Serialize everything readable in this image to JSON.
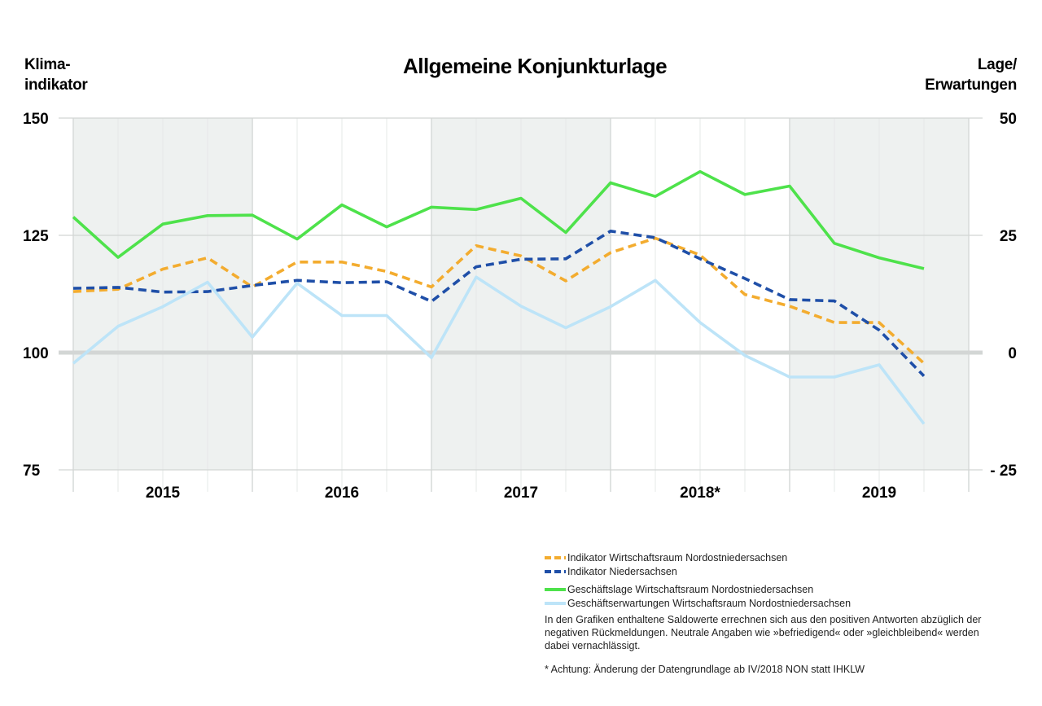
{
  "chart_data": {
    "type": "line",
    "title": "Allgemeine Konjunkturlage",
    "ylabel_left": [
      "Klima-",
      "indikator"
    ],
    "ylabel_right": [
      "Lage/",
      "Erwartungen"
    ],
    "y_left": {
      "min": 75,
      "max": 150,
      "ticks": [
        "150",
        "125",
        "100",
        "75"
      ]
    },
    "y_right": {
      "min": -25,
      "max": 50,
      "ticks": [
        "50",
        "25",
        "0",
        "- 25"
      ]
    },
    "years": [
      "2015",
      "2016",
      "2017",
      "2018*",
      "2019"
    ],
    "quarters_per_year": 4,
    "grid": true,
    "shaded_years": [
      "2015",
      "2017",
      "2019"
    ],
    "series": [
      {
        "name": "Indikator Wirtschaftsraum Nordostniedersachsen",
        "axis": "left",
        "style": "dashed",
        "color": "#f3ac2f",
        "values": [
          113.0,
          113.5,
          117.8,
          120.2,
          114.0,
          119.3,
          119.3,
          117.3,
          114.0,
          122.8,
          120.6,
          115.3,
          121.3,
          124.4,
          120.8,
          112.4,
          109.9,
          106.4,
          106.4,
          97.7
        ]
      },
      {
        "name": "Indikator Niedersachsen",
        "axis": "left",
        "style": "dashed",
        "color": "#1f4fa8",
        "values": [
          113.7,
          113.9,
          112.9,
          113.0,
          114.3,
          115.4,
          114.9,
          115.1,
          110.9,
          118.3,
          119.9,
          120.0,
          125.9,
          124.5,
          120.0,
          115.8,
          111.3,
          111.0,
          104.8,
          95.0
        ]
      },
      {
        "name": "Geschäftslage Wirtschaftsraum Nordostniedersachsen",
        "axis": "right",
        "style": "solid",
        "color": "#4ee24b",
        "values": [
          28.9,
          20.3,
          27.4,
          29.2,
          29.3,
          24.2,
          31.5,
          26.8,
          31.0,
          30.5,
          32.9,
          25.6,
          36.2,
          33.3,
          38.6,
          33.7,
          35.5,
          23.3,
          20.2,
          17.9
        ]
      },
      {
        "name": "Geschäftserwartungen Wirtschaftsraum Nordostniedersachsen",
        "axis": "right",
        "style": "solid",
        "color": "#bde4f8",
        "values": [
          -2.3,
          5.6,
          9.8,
          15.0,
          3.3,
          14.8,
          7.9,
          7.9,
          -1.1,
          16.1,
          9.9,
          5.3,
          9.8,
          15.4,
          6.4,
          -0.6,
          -5.2,
          -5.2,
          -2.6,
          -15.2
        ]
      }
    ]
  },
  "legend_note": "In den Grafiken enthaltene Saldowerte errechnen sich aus den positiven Antworten abzüglich der negativen Rückmeldungen. Neutrale Angaben wie »befriedigend« oder »gleichbleibend« werden dabei vernachlässigt.",
  "footnote": "* Achtung: Änderung der Datengrundlage ab IV/2018 NON statt IHKLW"
}
